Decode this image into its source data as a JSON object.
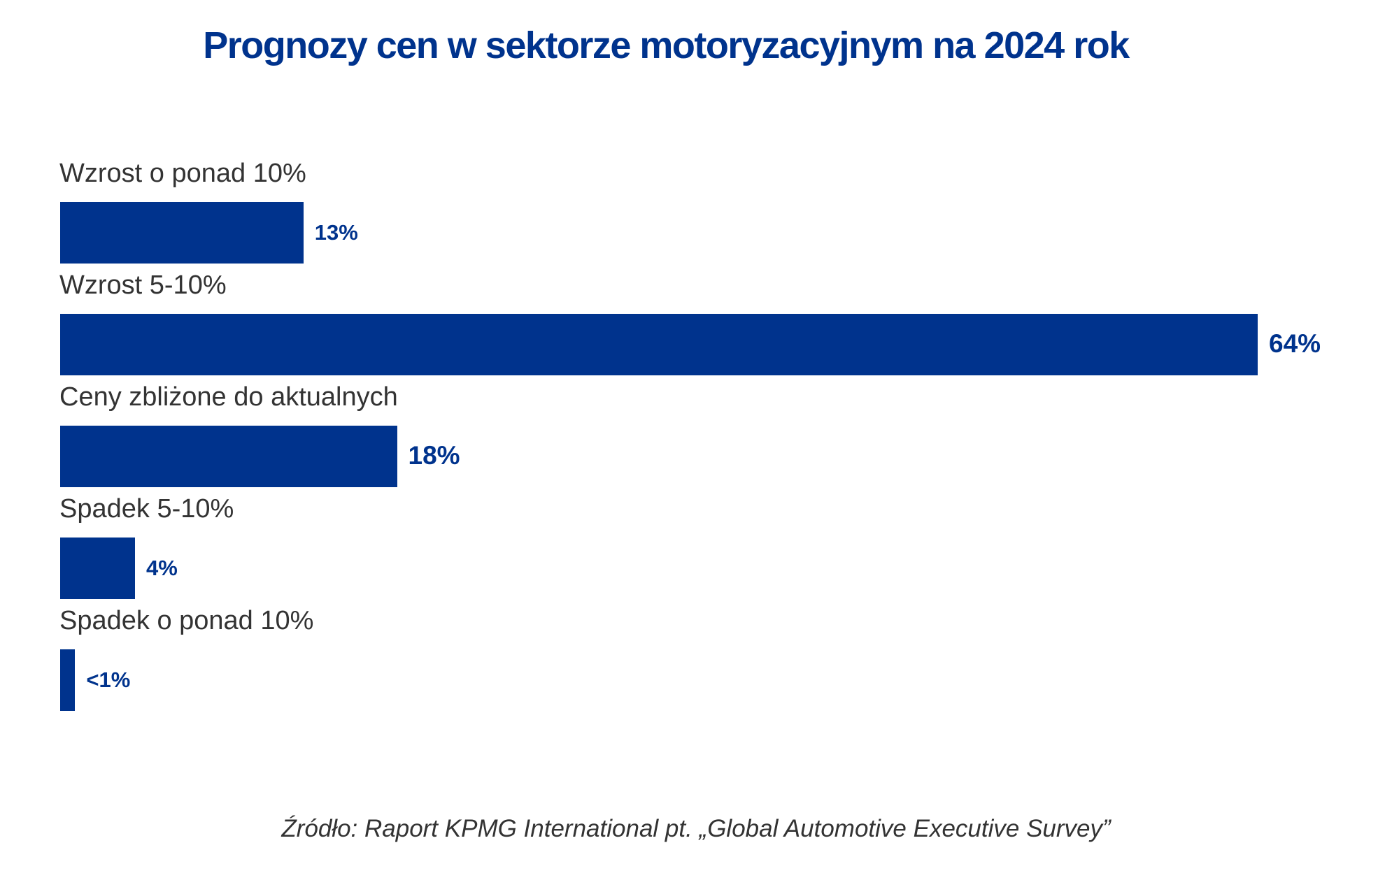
{
  "chart_data": {
    "type": "bar",
    "orientation": "horizontal",
    "title": "Prognozy cen w sektorze motoryzacyjnym na 2024 rok",
    "categories": [
      "Wzrost o ponad 10%",
      "Wzrost 5-10%",
      "Ceny zbliżone do aktualnych",
      "Spadek 5-10%",
      "Spadek o ponad 10%"
    ],
    "values": [
      13,
      64,
      18,
      4,
      0.8
    ],
    "labels": [
      "13%",
      "64%",
      "18%",
      "4%",
      "<1%"
    ],
    "xlabel": "",
    "ylabel": "",
    "xlim": [
      0,
      64
    ],
    "grid": false,
    "bar_color": "#00338D"
  },
  "source": "Źródło: Raport KPMG International pt. „Global Automotive Executive Survey”"
}
